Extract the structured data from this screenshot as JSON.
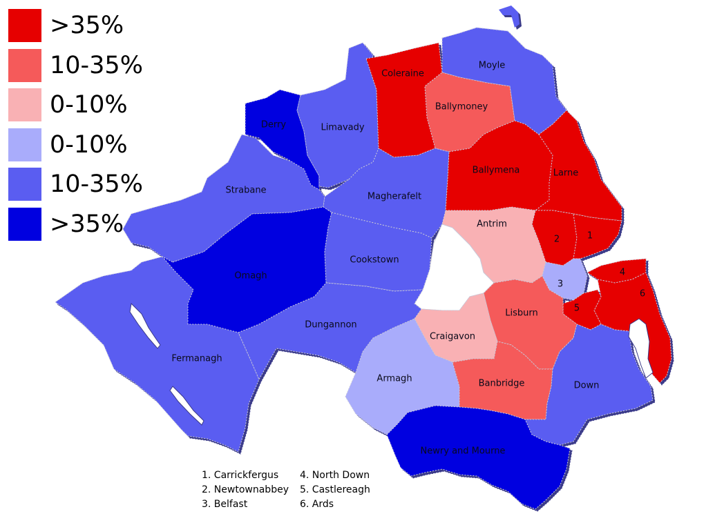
{
  "colors": {
    "strong_red": "#e60000",
    "mid_red": "#f55a5a",
    "light_red": "#f9b1b4",
    "light_blue": "#a9acfb",
    "mid_blue": "#5a5df1",
    "strong_blue": "#0000e0",
    "lake": "#ffffff",
    "shadow": "#3a3a8a"
  },
  "legend": [
    {
      "label": ">35%",
      "color": "#e60000"
    },
    {
      "label": "10-35%",
      "color": "#f55a5a"
    },
    {
      "label": "0-10%",
      "color": "#f9b1b4"
    },
    {
      "label": "0-10%",
      "color": "#a9acfb"
    },
    {
      "label": "10-35%",
      "color": "#5a5df1"
    },
    {
      "label": ">35%",
      "color": "#0000e0"
    }
  ],
  "districts": [
    {
      "id": "coleraine",
      "label": "Coleraine",
      "color": "#e60000"
    },
    {
      "id": "moyle",
      "label": "Moyle",
      "color": "#5a5df1"
    },
    {
      "id": "ballymoney",
      "label": "Ballymoney",
      "color": "#f55a5a"
    },
    {
      "id": "derry",
      "label": "Derry",
      "color": "#0000e0"
    },
    {
      "id": "limavady",
      "label": "Limavady",
      "color": "#5a5df1"
    },
    {
      "id": "ballymena",
      "label": "Ballymena",
      "color": "#e60000"
    },
    {
      "id": "larne",
      "label": "Larne",
      "color": "#e60000"
    },
    {
      "id": "strabane",
      "label": "Strabane",
      "color": "#5a5df1"
    },
    {
      "id": "magherafelt",
      "label": "Magherafelt",
      "color": "#5a5df1"
    },
    {
      "id": "antrim",
      "label": "Antrim",
      "color": "#f9b1b4"
    },
    {
      "id": "newtownabbey",
      "label": "2",
      "color": "#e60000"
    },
    {
      "id": "carrickfergus",
      "label": "1",
      "color": "#e60000"
    },
    {
      "id": "omagh",
      "label": "Omagh",
      "color": "#0000e0"
    },
    {
      "id": "cookstown",
      "label": "Cookstown",
      "color": "#5a5df1"
    },
    {
      "id": "belfast",
      "label": "3",
      "color": "#a9acfb"
    },
    {
      "id": "north-down",
      "label": "4",
      "color": "#e60000"
    },
    {
      "id": "ards",
      "label": "6",
      "color": "#e60000"
    },
    {
      "id": "castlereagh",
      "label": "5",
      "color": "#e60000"
    },
    {
      "id": "lisburn",
      "label": "Lisburn",
      "color": "#f55a5a"
    },
    {
      "id": "dungannon",
      "label": "Dungannon",
      "color": "#5a5df1"
    },
    {
      "id": "craigavon",
      "label": "Craigavon",
      "color": "#f9b1b4"
    },
    {
      "id": "fermanagh",
      "label": "Fermanagh",
      "color": "#5a5df1"
    },
    {
      "id": "armagh",
      "label": "Armagh",
      "color": "#a9acfb"
    },
    {
      "id": "banbridge",
      "label": "Banbridge",
      "color": "#f55a5a"
    },
    {
      "id": "down",
      "label": "Down",
      "color": "#5a5df1"
    },
    {
      "id": "newry-and-mourne",
      "label": "Newry and Mourne",
      "color": "#0000e0"
    }
  ],
  "key": [
    "1. Carrickfergus",
    "4. North Down",
    "2. Newtownabbey",
    "5. Castlereagh",
    "3. Belfast",
    "6. Ards"
  ]
}
